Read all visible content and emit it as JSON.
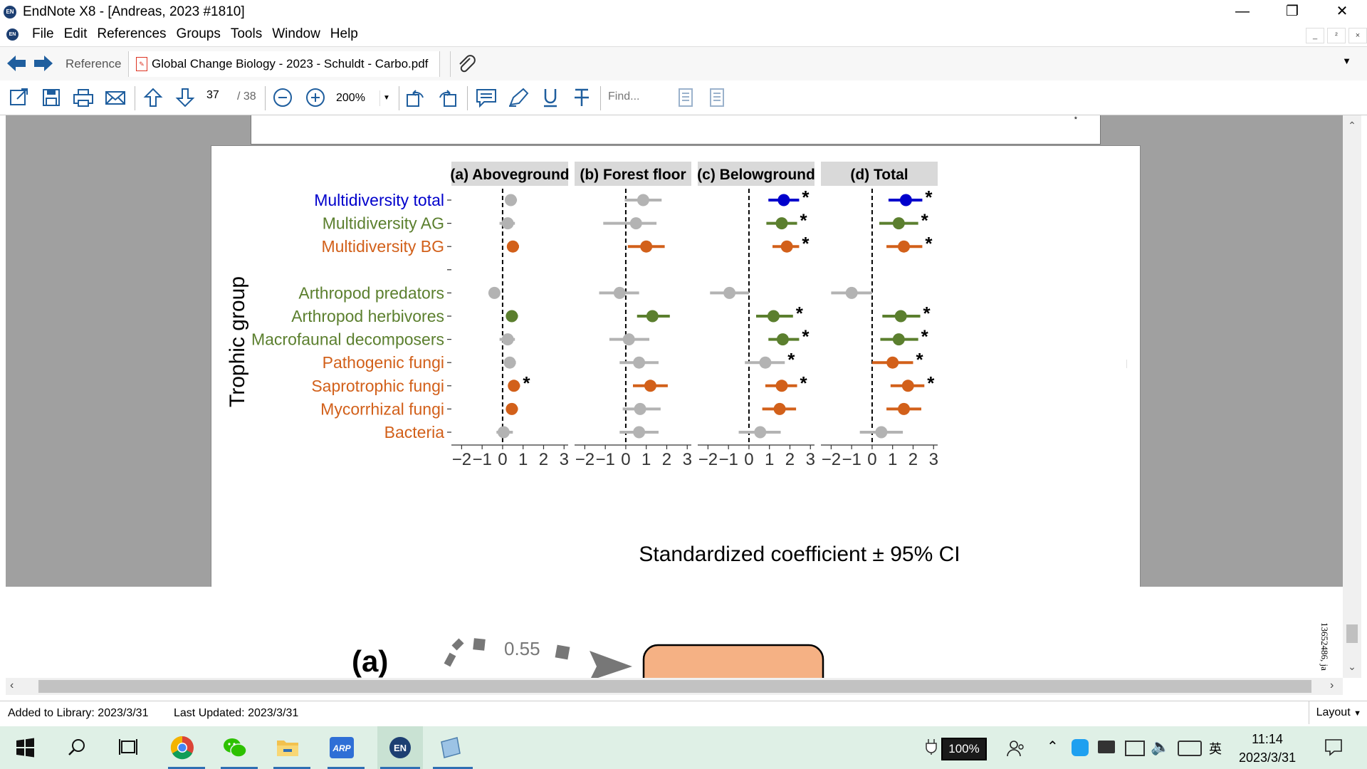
{
  "window": {
    "title": "EndNote X8 - [Andreas, 2023 #1810]",
    "app_icon": "EN",
    "controls": [
      "minimize-icon",
      "restore-icon",
      "close-icon"
    ]
  },
  "menu": {
    "items": [
      "File",
      "Edit",
      "References",
      "Groups",
      "Tools",
      "Window",
      "Help"
    ],
    "mdi_buttons": [
      "_",
      "²",
      "×"
    ]
  },
  "tabs": {
    "reference_label": "Reference",
    "pdf_label": "Global Change Biology - 2023 - Schuldt - Carbo.pdf"
  },
  "toolbar": {
    "page_current": "37",
    "page_total": "/ 38",
    "zoom": "200%",
    "find_placeholder": "Find..."
  },
  "figure": {
    "panel_titles": [
      "(a) Aboveground",
      "(b) Forest floor",
      "(c) Belowground",
      "(d) Total"
    ],
    "y_axis_title": "Trophic group",
    "x_axis_title": "Standardized coefficient ± 95% CI",
    "tick_labels": [
      "−2",
      "−1",
      "0",
      "1",
      "2",
      "3"
    ],
    "rows": [
      {
        "label": "Multidiversity total",
        "color": "#0000cc"
      },
      {
        "label": "Multidiversity AG",
        "color": "#5b7f2e"
      },
      {
        "label": "Multidiversity BG",
        "color": "#d2601a"
      },
      {
        "label": "",
        "color": "#000000"
      },
      {
        "label": "Arthropod predators",
        "color": "#5b7f2e"
      },
      {
        "label": "Arthropod herbivores",
        "color": "#5b7f2e"
      },
      {
        "label": "Macrofaunal decomposers",
        "color": "#5b7f2e"
      },
      {
        "label": "Pathogenic fungi",
        "color": "#d2601a"
      },
      {
        "label": "Saprotrophic fungi",
        "color": "#d2601a"
      },
      {
        "label": "Mycorrhizal fungi",
        "color": "#d2601a"
      },
      {
        "label": "Bacteria",
        "color": "#d2601a"
      }
    ]
  },
  "chart_data": {
    "type": "scatter",
    "title": "",
    "xlabel": "Standardized coefficient ± 95% CI",
    "ylabel": "Trophic group",
    "xlim": [
      -2.5,
      3.2
    ],
    "x_ticks": [
      -2,
      -1,
      0,
      1,
      2,
      3
    ],
    "reference_line_x": 0,
    "colors": {
      "blue": "#0000cc",
      "green": "#5b7f2e",
      "orange": "#d2601a",
      "grey": "#b3b3b3"
    },
    "panels": [
      {
        "name": "(a) Aboveground",
        "points": [
          {
            "row": 0,
            "est": 0.4,
            "lo": 0.2,
            "hi": 0.7,
            "color": "grey",
            "sig": false
          },
          {
            "row": 1,
            "est": 0.25,
            "lo": -0.15,
            "hi": 0.6,
            "color": "grey",
            "sig": false
          },
          {
            "row": 2,
            "est": 0.5,
            "lo": 0.3,
            "hi": 0.8,
            "color": "orange",
            "sig": false
          },
          {
            "row": 4,
            "est": -0.4,
            "lo": -0.6,
            "hi": -0.2,
            "color": "grey",
            "sig": false
          },
          {
            "row": 5,
            "est": 0.45,
            "lo": 0.25,
            "hi": 0.75,
            "color": "green",
            "sig": false
          },
          {
            "row": 6,
            "est": 0.25,
            "lo": -0.15,
            "hi": 0.6,
            "color": "grey",
            "sig": false
          },
          {
            "row": 7,
            "est": 0.35,
            "lo": 0.15,
            "hi": 0.65,
            "color": "grey",
            "sig": false
          },
          {
            "row": 8,
            "est": 0.55,
            "lo": 0.35,
            "hi": 0.85,
            "color": "orange",
            "sig": true
          },
          {
            "row": 9,
            "est": 0.45,
            "lo": 0.3,
            "hi": 0.75,
            "color": "orange",
            "sig": false
          },
          {
            "row": 10,
            "est": 0.05,
            "lo": -0.3,
            "hi": 0.5,
            "color": "grey",
            "sig": false
          }
        ]
      },
      {
        "name": "(b) Forest floor",
        "points": [
          {
            "row": 0,
            "est": 0.85,
            "lo": -0.05,
            "hi": 1.75,
            "color": "grey",
            "sig": false
          },
          {
            "row": 1,
            "est": 0.5,
            "lo": -1.1,
            "hi": 1.5,
            "color": "grey",
            "sig": false
          },
          {
            "row": 2,
            "est": 1.0,
            "lo": 0.1,
            "hi": 1.9,
            "color": "orange",
            "sig": false
          },
          {
            "row": 4,
            "est": -0.3,
            "lo": -1.3,
            "hi": 0.65,
            "color": "grey",
            "sig": false
          },
          {
            "row": 5,
            "est": 1.3,
            "lo": 0.55,
            "hi": 2.15,
            "color": "green",
            "sig": false
          },
          {
            "row": 6,
            "est": 0.15,
            "lo": -0.8,
            "hi": 1.15,
            "color": "grey",
            "sig": false
          },
          {
            "row": 7,
            "est": 0.65,
            "lo": -0.3,
            "hi": 1.6,
            "color": "grey",
            "sig": false
          },
          {
            "row": 8,
            "est": 1.2,
            "lo": 0.35,
            "hi": 2.05,
            "color": "orange",
            "sig": false
          },
          {
            "row": 9,
            "est": 0.7,
            "lo": -0.15,
            "hi": 1.7,
            "color": "grey",
            "sig": false
          },
          {
            "row": 10,
            "est": 0.65,
            "lo": -0.3,
            "hi": 1.6,
            "color": "grey",
            "sig": false
          }
        ]
      },
      {
        "name": "(c) Belowground",
        "points": [
          {
            "row": 0,
            "est": 1.7,
            "lo": 0.95,
            "hi": 2.45,
            "color": "blue",
            "sig": true
          },
          {
            "row": 1,
            "est": 1.6,
            "lo": 0.85,
            "hi": 2.35,
            "color": "green",
            "sig": true
          },
          {
            "row": 2,
            "est": 1.85,
            "lo": 1.15,
            "hi": 2.45,
            "color": "orange",
            "sig": true
          },
          {
            "row": 4,
            "est": -0.95,
            "lo": -1.9,
            "hi": 0.0,
            "color": "grey",
            "sig": false
          },
          {
            "row": 5,
            "est": 1.2,
            "lo": 0.35,
            "hi": 2.15,
            "color": "green",
            "sig": true
          },
          {
            "row": 6,
            "est": 1.65,
            "lo": 0.95,
            "hi": 2.45,
            "color": "green",
            "sig": true
          },
          {
            "row": 7,
            "est": 0.8,
            "lo": -0.2,
            "hi": 1.75,
            "color": "grey",
            "sig": true
          },
          {
            "row": 8,
            "est": 1.6,
            "lo": 0.8,
            "hi": 2.35,
            "color": "orange",
            "sig": true
          },
          {
            "row": 9,
            "est": 1.5,
            "lo": 0.65,
            "hi": 2.3,
            "color": "orange",
            "sig": false
          },
          {
            "row": 10,
            "est": 0.55,
            "lo": -0.5,
            "hi": 1.55,
            "color": "grey",
            "sig": false
          }
        ]
      },
      {
        "name": "(d) Total",
        "points": [
          {
            "row": 0,
            "est": 1.65,
            "lo": 0.8,
            "hi": 2.45,
            "color": "blue",
            "sig": true
          },
          {
            "row": 1,
            "est": 1.3,
            "lo": 0.35,
            "hi": 2.25,
            "color": "green",
            "sig": true
          },
          {
            "row": 2,
            "est": 1.55,
            "lo": 0.7,
            "hi": 2.45,
            "color": "orange",
            "sig": true
          },
          {
            "row": 4,
            "est": -1.0,
            "lo": -2.0,
            "hi": 0.0,
            "color": "grey",
            "sig": false
          },
          {
            "row": 5,
            "est": 1.4,
            "lo": 0.5,
            "hi": 2.35,
            "color": "green",
            "sig": true
          },
          {
            "row": 6,
            "est": 1.3,
            "lo": 0.4,
            "hi": 2.25,
            "color": "green",
            "sig": true
          },
          {
            "row": 7,
            "est": 1.0,
            "lo": 0.0,
            "hi": 2.0,
            "color": "orange",
            "sig": true
          },
          {
            "row": 8,
            "est": 1.75,
            "lo": 0.9,
            "hi": 2.55,
            "color": "orange",
            "sig": true
          },
          {
            "row": 9,
            "est": 1.55,
            "lo": 0.7,
            "hi": 2.4,
            "color": "orange",
            "sig": false
          },
          {
            "row": 10,
            "est": 0.45,
            "lo": -0.6,
            "hi": 1.5,
            "color": "grey",
            "sig": false
          }
        ]
      }
    ]
  },
  "next_page": {
    "panel_label": "(a)",
    "path_value": "0.55",
    "side_id": "13652486, ja"
  },
  "status": {
    "added": "Added to Library: 2023/3/31",
    "updated": "Last Updated: 2023/3/31",
    "layout": "Layout"
  },
  "taskbar": {
    "battery": "100%",
    "ime": "英",
    "time": "11:14",
    "date": "2023/3/31",
    "apps": [
      "windows-start-icon",
      "search-icon",
      "task-view-icon",
      "chrome-icon",
      "wechat-icon",
      "file-explorer-icon",
      "arp-icon",
      "endnote-icon",
      "notepad-icon"
    ]
  }
}
